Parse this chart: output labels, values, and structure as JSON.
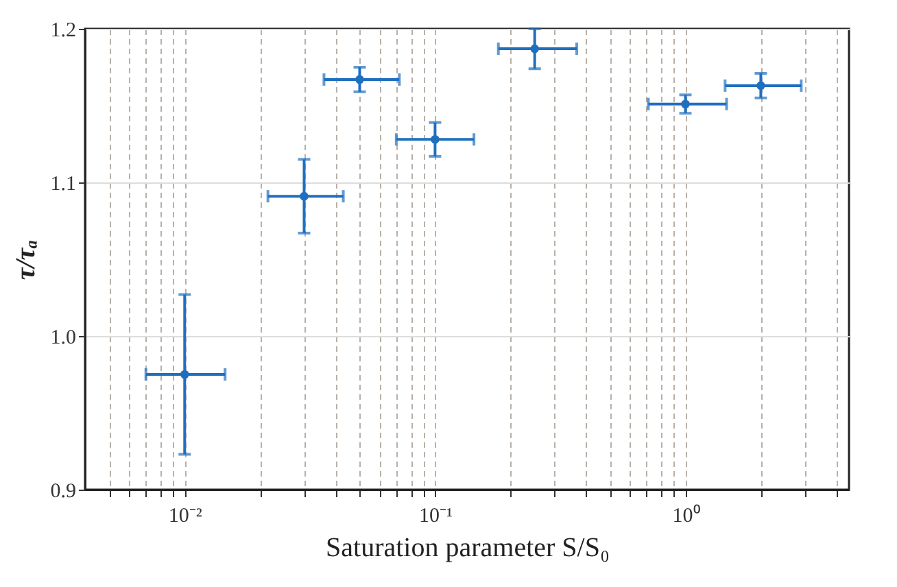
{
  "chart_data": {
    "type": "scatter",
    "xlabel": "Saturation parameter S/S₀",
    "ylabel": "τ/τₐ",
    "x": [
      0.01,
      0.03,
      0.05,
      0.1,
      0.25,
      1.0,
      2.0
    ],
    "series": [
      {
        "color": "#1f6fc0",
        "values": [
          0.975,
          1.091,
          1.167,
          1.128,
          1.187,
          1.151,
          1.163
        ],
        "errors": [
          0.052,
          0.024,
          0.008,
          0.011,
          0.013,
          0.006,
          0.008
        ],
        "xerrors": [
          [
            0.007,
            0.0145
          ],
          [
            0.0215,
            0.043
          ],
          [
            0.036,
            0.072
          ],
          [
            0.07,
            0.143
          ],
          [
            0.179,
            0.368
          ],
          [
            0.711,
            1.46
          ],
          [
            1.44,
            2.9
          ]
        ]
      }
    ],
    "log": "x",
    "xlim": [
      0.004,
      4.5
    ],
    "ylim": [
      0.9,
      1.2
    ],
    "xticks": [
      {
        "value": 0.005,
        "label": null
      },
      {
        "value": 0.006,
        "label": null
      },
      {
        "value": 0.007,
        "label": null
      },
      {
        "value": 0.008,
        "label": null
      },
      {
        "value": 0.009,
        "label": null
      },
      {
        "value": 0.01,
        "label": "10⁻²"
      },
      {
        "value": 0.02,
        "label": null
      },
      {
        "value": 0.03,
        "label": null
      },
      {
        "value": 0.04,
        "label": null
      },
      {
        "value": 0.05,
        "label": null
      },
      {
        "value": 0.06,
        "label": null
      },
      {
        "value": 0.07,
        "label": null
      },
      {
        "value": 0.08,
        "label": null
      },
      {
        "value": 0.09,
        "label": null
      },
      {
        "value": 0.1,
        "label": "10⁻¹"
      },
      {
        "value": 0.2,
        "label": null
      },
      {
        "value": 0.3,
        "label": null
      },
      {
        "value": 0.4,
        "label": null
      },
      {
        "value": 0.5,
        "label": null
      },
      {
        "value": 0.6,
        "label": null
      },
      {
        "value": 0.7,
        "label": null
      },
      {
        "value": 0.8,
        "label": null
      },
      {
        "value": 0.9,
        "label": null
      },
      {
        "value": 1,
        "label": "10⁰"
      },
      {
        "value": 2,
        "label": null
      },
      {
        "value": 3,
        "label": null
      },
      {
        "value": 4,
        "label": null
      }
    ],
    "yticks": [
      0.9,
      {
        "value": 1,
        "label": "1.0"
      },
      1.1,
      1.2
    ],
    "grid": true,
    "marker": "circle"
  }
}
